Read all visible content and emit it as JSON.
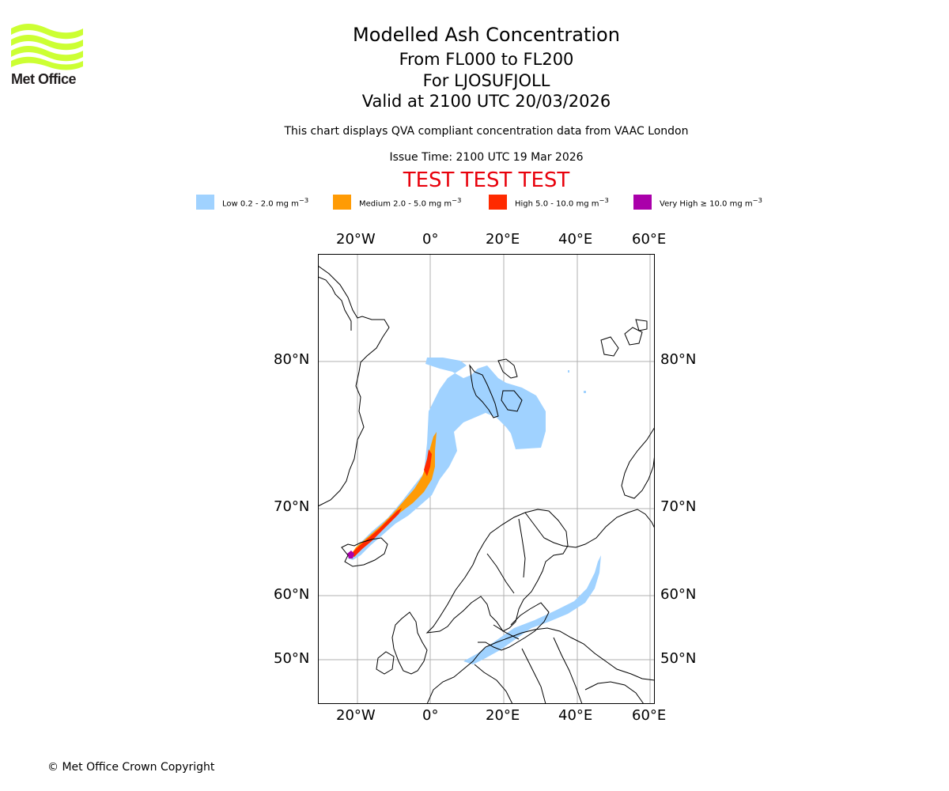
{
  "brand": {
    "logo_text": "Met Office",
    "logo_color": "#ccff33"
  },
  "header": {
    "title": "Modelled Ash Concentration",
    "levels": "From FL000 to FL200",
    "volcano": "For LJOSUFJOLL",
    "valid": "Valid at 2100 UTC 20/03/2026",
    "note": "This chart displays QVA compliant concentration data from VAAC London",
    "issue": "Issue Time: 2100 UTC 19 Mar 2026",
    "test_banner": "TEST TEST TEST",
    "test_color": "#e8000b"
  },
  "legend": [
    {
      "label": "Low 0.2 - 2.0 mg m",
      "exp": "−3",
      "color": "#a0d2ff"
    },
    {
      "label": "Medium 2.0 - 5.0 mg m",
      "exp": "−3",
      "color": "#ff9b05"
    },
    {
      "label": "High 5.0 - 10.0 mg m",
      "exp": "−3",
      "color": "#ff2a00"
    },
    {
      "label": "Very High ≥ 10.0 mg m",
      "exp": "−3",
      "color": "#aa00aa"
    }
  ],
  "map": {
    "lon_ticks": [
      "20°W",
      "0°",
      "20°E",
      "40°E",
      "60°E"
    ],
    "lat_ticks": [
      "80°N",
      "70°N",
      "60°N",
      "50°N"
    ],
    "gridline_color": "#b0b0b0",
    "coast_color": "#000000"
  },
  "footer": {
    "copyright": "© Met Office Crown Copyright"
  }
}
